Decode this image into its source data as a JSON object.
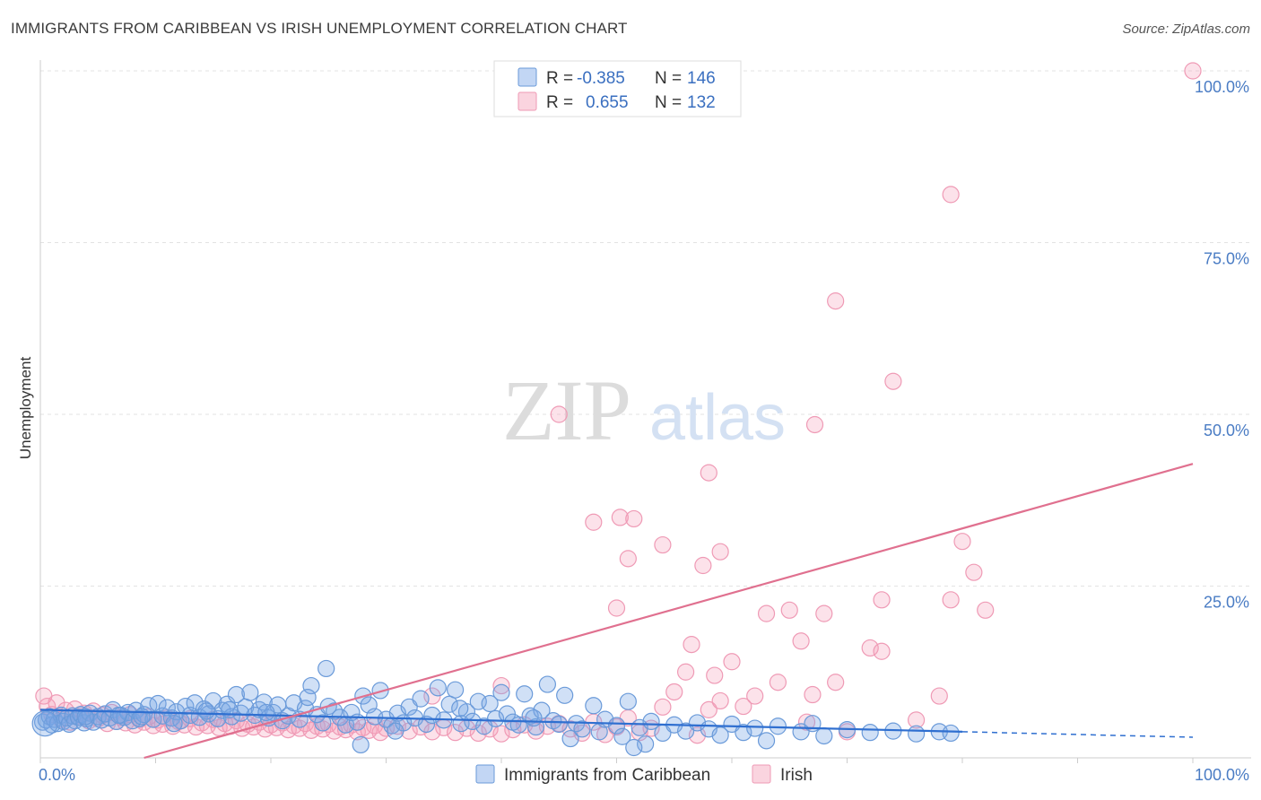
{
  "title": "IMMIGRANTS FROM CARIBBEAN VS IRISH UNEMPLOYMENT CORRELATION CHART",
  "source": "Source: ZipAtlas.com",
  "watermark": {
    "zip": "ZIP",
    "atlas": "atlas"
  },
  "colors": {
    "blue_fill": "rgba(120,165,230,0.35)",
    "blue_stroke": "#6a9ad9",
    "blue_line": "#2f6fd0",
    "pink_fill": "rgba(245,160,185,0.30)",
    "pink_stroke": "#ef9ab5",
    "pink_line": "#e0708f",
    "axis_text": "#4a7cc4"
  },
  "legend": {
    "rows": [
      {
        "r_label": "R =",
        "r_value": "-0.385",
        "n_label": "N =",
        "n_value": "146"
      },
      {
        "r_label": "R =",
        "r_value": "0.655",
        "n_label": "N =",
        "n_value": "132"
      }
    ]
  },
  "chart_data": {
    "type": "scatter",
    "title": "IMMIGRANTS FROM CARIBBEAN VS IRISH UNEMPLOYMENT CORRELATION CHART",
    "xlabel": "",
    "ylabel": "Unemployment",
    "xlim": [
      0,
      100
    ],
    "ylim": [
      0,
      100
    ],
    "x_tick_labels": [
      "0.0%",
      "100.0%"
    ],
    "y_ticks": [
      25,
      50,
      75,
      100
    ],
    "y_tick_labels": [
      "25.0%",
      "50.0%",
      "75.0%",
      "100.0%"
    ],
    "grid": true,
    "legend_position": "top-center",
    "series": [
      {
        "name": "Immigrants from Caribbean",
        "r": -0.385,
        "n": 146,
        "trend": {
          "x0": 0,
          "y0": 7.0,
          "x1": 80,
          "y1": 3.8,
          "dash_x1": 100,
          "dash_y1": 3.0
        },
        "points": [
          [
            0.2,
            5.2
          ],
          [
            0.5,
            5.5
          ],
          [
            0.8,
            6.0
          ],
          [
            1.0,
            4.8
          ],
          [
            1.2,
            5.6
          ],
          [
            1.5,
            5.0
          ],
          [
            1.8,
            6.2
          ],
          [
            2.0,
            5.3
          ],
          [
            2.3,
            5.8
          ],
          [
            2.5,
            4.9
          ],
          [
            2.8,
            6.1
          ],
          [
            3.0,
            5.4
          ],
          [
            3.3,
            5.9
          ],
          [
            3.5,
            6.3
          ],
          [
            3.8,
            5.1
          ],
          [
            4.0,
            5.7
          ],
          [
            4.3,
            6.5
          ],
          [
            4.6,
            5.2
          ],
          [
            5.0,
            6.0
          ],
          [
            5.3,
            5.5
          ],
          [
            5.6,
            6.4
          ],
          [
            6.0,
            5.8
          ],
          [
            6.3,
            7.0
          ],
          [
            6.6,
            5.3
          ],
          [
            7.0,
            6.2
          ],
          [
            7.3,
            5.9
          ],
          [
            7.6,
            6.6
          ],
          [
            8.0,
            5.4
          ],
          [
            8.3,
            6.9
          ],
          [
            8.6,
            5.7
          ],
          [
            9.0,
            6.3
          ],
          [
            9.4,
            7.6
          ],
          [
            9.8,
            5.6
          ],
          [
            10.2,
            7.9
          ],
          [
            10.6,
            6.1
          ],
          [
            11.0,
            7.3
          ],
          [
            11.4,
            5.8
          ],
          [
            11.8,
            6.7
          ],
          [
            12.2,
            5.4
          ],
          [
            12.6,
            7.5
          ],
          [
            13.0,
            6.2
          ],
          [
            13.4,
            8.0
          ],
          [
            13.8,
            5.9
          ],
          [
            14.2,
            7.1
          ],
          [
            14.6,
            6.4
          ],
          [
            15.0,
            8.3
          ],
          [
            15.4,
            5.7
          ],
          [
            15.8,
            6.9
          ],
          [
            16.2,
            7.8
          ],
          [
            16.6,
            6.0
          ],
          [
            17.0,
            9.2
          ],
          [
            17.4,
            6.5
          ],
          [
            17.8,
            7.4
          ],
          [
            18.2,
            9.5
          ],
          [
            18.6,
            6.2
          ],
          [
            19.0,
            7.0
          ],
          [
            19.4,
            8.1
          ],
          [
            19.8,
            5.8
          ],
          [
            20.2,
            6.6
          ],
          [
            20.6,
            7.7
          ],
          [
            21.0,
            5.4
          ],
          [
            21.5,
            6.1
          ],
          [
            22.0,
            8.0
          ],
          [
            22.5,
            5.6
          ],
          [
            23.0,
            7.2
          ],
          [
            23.5,
            10.5
          ],
          [
            24.0,
            6.3
          ],
          [
            24.5,
            5.1
          ],
          [
            25.0,
            7.5
          ],
          [
            25.5,
            6.8
          ],
          [
            26.0,
            5.9
          ],
          [
            26.5,
            4.8
          ],
          [
            27.0,
            6.6
          ],
          [
            27.5,
            5.2
          ],
          [
            28.0,
            9.0
          ],
          [
            28.5,
            7.7
          ],
          [
            29.0,
            6.0
          ],
          [
            29.5,
            9.8
          ],
          [
            30.0,
            5.6
          ],
          [
            30.5,
            4.7
          ],
          [
            31.0,
            6.5
          ],
          [
            31.5,
            5.1
          ],
          [
            32.0,
            7.4
          ],
          [
            32.5,
            5.8
          ],
          [
            33.0,
            8.6
          ],
          [
            33.5,
            4.9
          ],
          [
            34.0,
            6.2
          ],
          [
            34.5,
            10.2
          ],
          [
            35.0,
            5.5
          ],
          [
            35.5,
            7.8
          ],
          [
            36.0,
            9.9
          ],
          [
            36.5,
            5.0
          ],
          [
            37.0,
            6.7
          ],
          [
            37.5,
            5.3
          ],
          [
            38.0,
            8.2
          ],
          [
            38.5,
            4.6
          ],
          [
            39.0,
            7.9
          ],
          [
            39.5,
            5.7
          ],
          [
            40.0,
            9.5
          ],
          [
            40.5,
            6.4
          ],
          [
            41.0,
            5.2
          ],
          [
            41.5,
            4.8
          ],
          [
            42.0,
            9.3
          ],
          [
            42.5,
            6.1
          ],
          [
            43.0,
            4.5
          ],
          [
            43.5,
            6.9
          ],
          [
            44.0,
            10.7
          ],
          [
            44.5,
            5.4
          ],
          [
            45.0,
            4.9
          ],
          [
            45.5,
            9.1
          ],
          [
            46.0,
            2.8
          ],
          [
            46.5,
            5.0
          ],
          [
            47.0,
            4.2
          ],
          [
            48.0,
            7.6
          ],
          [
            48.5,
            3.8
          ],
          [
            49.0,
            5.6
          ],
          [
            50.0,
            4.7
          ],
          [
            50.5,
            3.1
          ],
          [
            51.0,
            8.2
          ],
          [
            52.0,
            4.4
          ],
          [
            52.5,
            2.0
          ],
          [
            53.0,
            5.3
          ],
          [
            54.0,
            3.6
          ],
          [
            55.0,
            4.8
          ],
          [
            56.0,
            3.9
          ],
          [
            57.0,
            5.1
          ],
          [
            58.0,
            4.2
          ],
          [
            59.0,
            3.3
          ],
          [
            60.0,
            4.9
          ],
          [
            61.0,
            3.7
          ],
          [
            62.0,
            4.3
          ],
          [
            63.0,
            2.5
          ],
          [
            64.0,
            4.6
          ],
          [
            66.0,
            3.8
          ],
          [
            67.0,
            5.0
          ],
          [
            68.0,
            3.2
          ],
          [
            70.0,
            4.1
          ],
          [
            72.0,
            3.7
          ],
          [
            74.0,
            3.9
          ],
          [
            76.0,
            3.5
          ],
          [
            78.0,
            3.8
          ],
          [
            79.0,
            3.6
          ],
          [
            6.8,
            6.2
          ],
          [
            11.6,
            5.0
          ],
          [
            16.4,
            7.0
          ],
          [
            19.6,
            6.6
          ],
          [
            24.8,
            13.0
          ],
          [
            27.8,
            1.9
          ],
          [
            51.5,
            1.5
          ],
          [
            36.4,
            7.2
          ],
          [
            30.8,
            3.9
          ],
          [
            42.8,
            5.8
          ],
          [
            8.8,
            6.0
          ],
          [
            14.4,
            6.8
          ],
          [
            3.9,
            6.0
          ],
          [
            23.2,
            8.8
          ]
        ]
      },
      {
        "name": "Irish",
        "r": 0.655,
        "n": 132,
        "trend": {
          "x0": 9,
          "y0": 0,
          "x1": 100,
          "y1": 42.8
        },
        "points": [
          [
            0.3,
            9.0
          ],
          [
            0.6,
            7.5
          ],
          [
            1.0,
            6.3
          ],
          [
            1.4,
            8.0
          ],
          [
            1.8,
            5.6
          ],
          [
            2.2,
            6.9
          ],
          [
            2.6,
            5.2
          ],
          [
            3.0,
            7.1
          ],
          [
            3.4,
            5.9
          ],
          [
            3.8,
            6.5
          ],
          [
            4.2,
            5.4
          ],
          [
            4.6,
            6.8
          ],
          [
            5.0,
            5.7
          ],
          [
            5.4,
            6.2
          ],
          [
            5.8,
            5.0
          ],
          [
            6.2,
            6.6
          ],
          [
            6.6,
            5.3
          ],
          [
            7.0,
            5.9
          ],
          [
            7.4,
            5.1
          ],
          [
            7.8,
            6.3
          ],
          [
            8.2,
            4.8
          ],
          [
            8.6,
            5.6
          ],
          [
            9.0,
            5.2
          ],
          [
            9.4,
            6.0
          ],
          [
            9.8,
            4.7
          ],
          [
            10.2,
            5.5
          ],
          [
            10.6,
            4.9
          ],
          [
            11.0,
            5.8
          ],
          [
            11.5,
            4.6
          ],
          [
            12.0,
            5.3
          ],
          [
            12.5,
            4.8
          ],
          [
            13.0,
            5.7
          ],
          [
            13.5,
            4.5
          ],
          [
            14.0,
            5.1
          ],
          [
            14.5,
            4.7
          ],
          [
            15.0,
            5.6
          ],
          [
            15.5,
            4.4
          ],
          [
            16.0,
            5.0
          ],
          [
            16.5,
            4.6
          ],
          [
            17.0,
            5.4
          ],
          [
            17.5,
            4.3
          ],
          [
            18.0,
            4.9
          ],
          [
            18.5,
            4.5
          ],
          [
            19.0,
            5.2
          ],
          [
            19.5,
            4.2
          ],
          [
            20.0,
            4.8
          ],
          [
            20.5,
            4.4
          ],
          [
            21.0,
            5.1
          ],
          [
            21.5,
            4.1
          ],
          [
            22.0,
            4.7
          ],
          [
            22.5,
            4.3
          ],
          [
            23.0,
            5.0
          ],
          [
            23.5,
            4.0
          ],
          [
            24.0,
            4.6
          ],
          [
            24.5,
            4.2
          ],
          [
            25.0,
            4.9
          ],
          [
            25.5,
            3.9
          ],
          [
            26.0,
            4.5
          ],
          [
            26.5,
            4.1
          ],
          [
            27.0,
            4.8
          ],
          [
            27.5,
            3.8
          ],
          [
            28.0,
            4.4
          ],
          [
            28.5,
            4.0
          ],
          [
            29.0,
            4.7
          ],
          [
            29.5,
            3.7
          ],
          [
            30.0,
            4.3
          ],
          [
            31.0,
            4.6
          ],
          [
            32.0,
            3.9
          ],
          [
            33.0,
            4.5
          ],
          [
            34.0,
            3.8
          ],
          [
            35.0,
            4.4
          ],
          [
            36.0,
            3.7
          ],
          [
            37.0,
            4.3
          ],
          [
            38.0,
            3.6
          ],
          [
            39.0,
            4.2
          ],
          [
            40.0,
            3.5
          ],
          [
            41.0,
            4.1
          ],
          [
            42.0,
            4.8
          ],
          [
            43.0,
            3.9
          ],
          [
            44.0,
            4.6
          ],
          [
            45.0,
            5.0
          ],
          [
            46.0,
            4.2
          ],
          [
            47.0,
            3.6
          ],
          [
            48.0,
            5.2
          ],
          [
            49.0,
            3.4
          ],
          [
            50.0,
            4.5
          ],
          [
            51.0,
            5.8
          ],
          [
            52.0,
            3.7
          ],
          [
            53.0,
            4.3
          ],
          [
            54.0,
            7.4
          ],
          [
            55.0,
            9.6
          ],
          [
            56.0,
            12.5
          ],
          [
            56.5,
            16.5
          ],
          [
            57.0,
            3.3
          ],
          [
            58.0,
            7.0
          ],
          [
            58.5,
            12.0
          ],
          [
            59.0,
            8.3
          ],
          [
            60.0,
            14.0
          ],
          [
            61.0,
            7.5
          ],
          [
            62.0,
            9.0
          ],
          [
            63.0,
            21.0
          ],
          [
            64.0,
            11.0
          ],
          [
            65.0,
            21.5
          ],
          [
            66.0,
            17.0
          ],
          [
            66.5,
            5.2
          ],
          [
            67.0,
            9.2
          ],
          [
            68.0,
            21.0
          ],
          [
            69.0,
            11.0
          ],
          [
            70.0,
            3.8
          ],
          [
            72.0,
            16.0
          ],
          [
            73.0,
            15.5
          ],
          [
            76.0,
            5.5
          ],
          [
            78.0,
            9.0
          ],
          [
            79.0,
            23.0
          ],
          [
            80.0,
            31.5
          ],
          [
            81.0,
            27.0
          ],
          [
            82.0,
            21.5
          ],
          [
            48.0,
            34.3
          ],
          [
            50.3,
            35.0
          ],
          [
            51.5,
            34.8
          ],
          [
            51.0,
            29.0
          ],
          [
            54.0,
            31.0
          ],
          [
            57.5,
            28.0
          ],
          [
            59.0,
            30.0
          ],
          [
            50.0,
            21.8
          ],
          [
            45.0,
            50.0
          ],
          [
            58.0,
            41.5
          ],
          [
            67.2,
            48.5
          ],
          [
            74.0,
            54.8
          ],
          [
            69.0,
            66.5
          ],
          [
            79.0,
            82.0
          ],
          [
            100.0,
            100.0
          ],
          [
            73.0,
            23.0
          ],
          [
            40.0,
            10.5
          ],
          [
            34.0,
            9.0
          ]
        ]
      }
    ]
  },
  "bottom_legend": {
    "items": [
      {
        "label": "Immigrants from Caribbean"
      },
      {
        "label": "Irish"
      }
    ]
  }
}
